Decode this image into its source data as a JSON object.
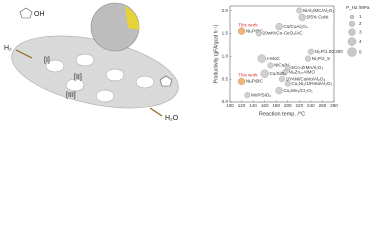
{
  "schematic": {
    "labels": [
      "H₂",
      "H₂O",
      "[I]",
      "[II]",
      "[III]",
      "OH"
    ]
  },
  "chart_data": {
    "type": "scatter",
    "xlabel": "Reaction temp. /°C",
    "ylabel": "Productivity (gFA/gcat h⁻¹)",
    "xlim": [
      100,
      280
    ],
    "xticks": [
      100,
      120,
      140,
      160,
      180,
      200,
      220,
      240,
      260,
      280
    ],
    "ylim": [
      0,
      2.1
    ],
    "yticks": [
      {
        "value": 0,
        "label": "0.0"
      },
      {
        "value": 0.5,
        "label": "0.5"
      },
      {
        "value": 1,
        "label": "1.0"
      },
      {
        "value": 1.5,
        "label": "1.5"
      },
      {
        "value": 2,
        "label": "2.0"
      }
    ],
    "legend": {
      "title": "P_H2 /MPa",
      "sizes": [
        1,
        2,
        3,
        4,
        5
      ]
    },
    "points": [
      {
        "label": "Ni₃P@C",
        "x": 120,
        "y": 1.55,
        "size": 3,
        "color": "#f2a65a",
        "note": "This work"
      },
      {
        "label": "Ni₂P@C",
        "x": 120,
        "y": 0.45,
        "size": 3,
        "color": "#f2a65a",
        "note": "This work"
      },
      {
        "label": "NiAl₂/MC/Al₂O₃",
        "x": 220,
        "y": 2.0,
        "size": 2,
        "color": "#c8c8c8"
      },
      {
        "label": "5/5% CuNi",
        "x": 225,
        "y": 1.85,
        "size": 3,
        "color": "#c8c8c8"
      },
      {
        "label": "Co/CoAl₂O₄",
        "x": 185,
        "y": 1.65,
        "size": 3,
        "color": "#c8c8c8"
      },
      {
        "label": "20wt%Co-CeO₂/AC",
        "x": 150,
        "y": 1.5,
        "size": 2,
        "color": "#c8c8c8"
      },
      {
        "label": "Ni₂P/1.00:300",
        "x": 240,
        "y": 1.1,
        "size": 2,
        "color": "#c8c8c8"
      },
      {
        "label": "Ni₂P/2_5",
        "x": 235,
        "y": 0.95,
        "size": 2,
        "color": "#c8c8c8"
      },
      {
        "label": "ε-MoC",
        "x": 155,
        "y": 0.95,
        "size": 4,
        "color": "#c8c8c8"
      },
      {
        "label": "NiCu/N",
        "x": 170,
        "y": 0.8,
        "size": 2,
        "color": "#c8c8c8"
      },
      {
        "label": "5Co-ZrMnAl₂O₃",
        "x": 200,
        "y": 0.75,
        "size": 2,
        "color": "#c8c8c8"
      },
      {
        "label": "Ni₂Zn₄-AlMO",
        "x": 195,
        "y": 0.65,
        "size": 2,
        "color": "#c8c8c8"
      },
      {
        "label": "Cu/SiO₂",
        "x": 160,
        "y": 0.62,
        "size": 4,
        "color": "#c8c8c8"
      },
      {
        "label": "10%Ni/CuMo/Al₂O₃",
        "x": 190,
        "y": 0.5,
        "size": 2,
        "color": "#c8c8c8"
      },
      {
        "label": "Cu₁Ni₂/10%Ni/Al₂O₃",
        "x": 200,
        "y": 0.4,
        "size": 2,
        "color": "#c8c8c8"
      },
      {
        "label": "Cu₂Mo₃/Cr₂O₃",
        "x": 185,
        "y": 0.25,
        "size": 3,
        "color": "#c8c8c8"
      },
      {
        "label": "MoP/SiO₂",
        "x": 130,
        "y": 0.15,
        "size": 2,
        "color": "#c8c8c8"
      }
    ]
  }
}
